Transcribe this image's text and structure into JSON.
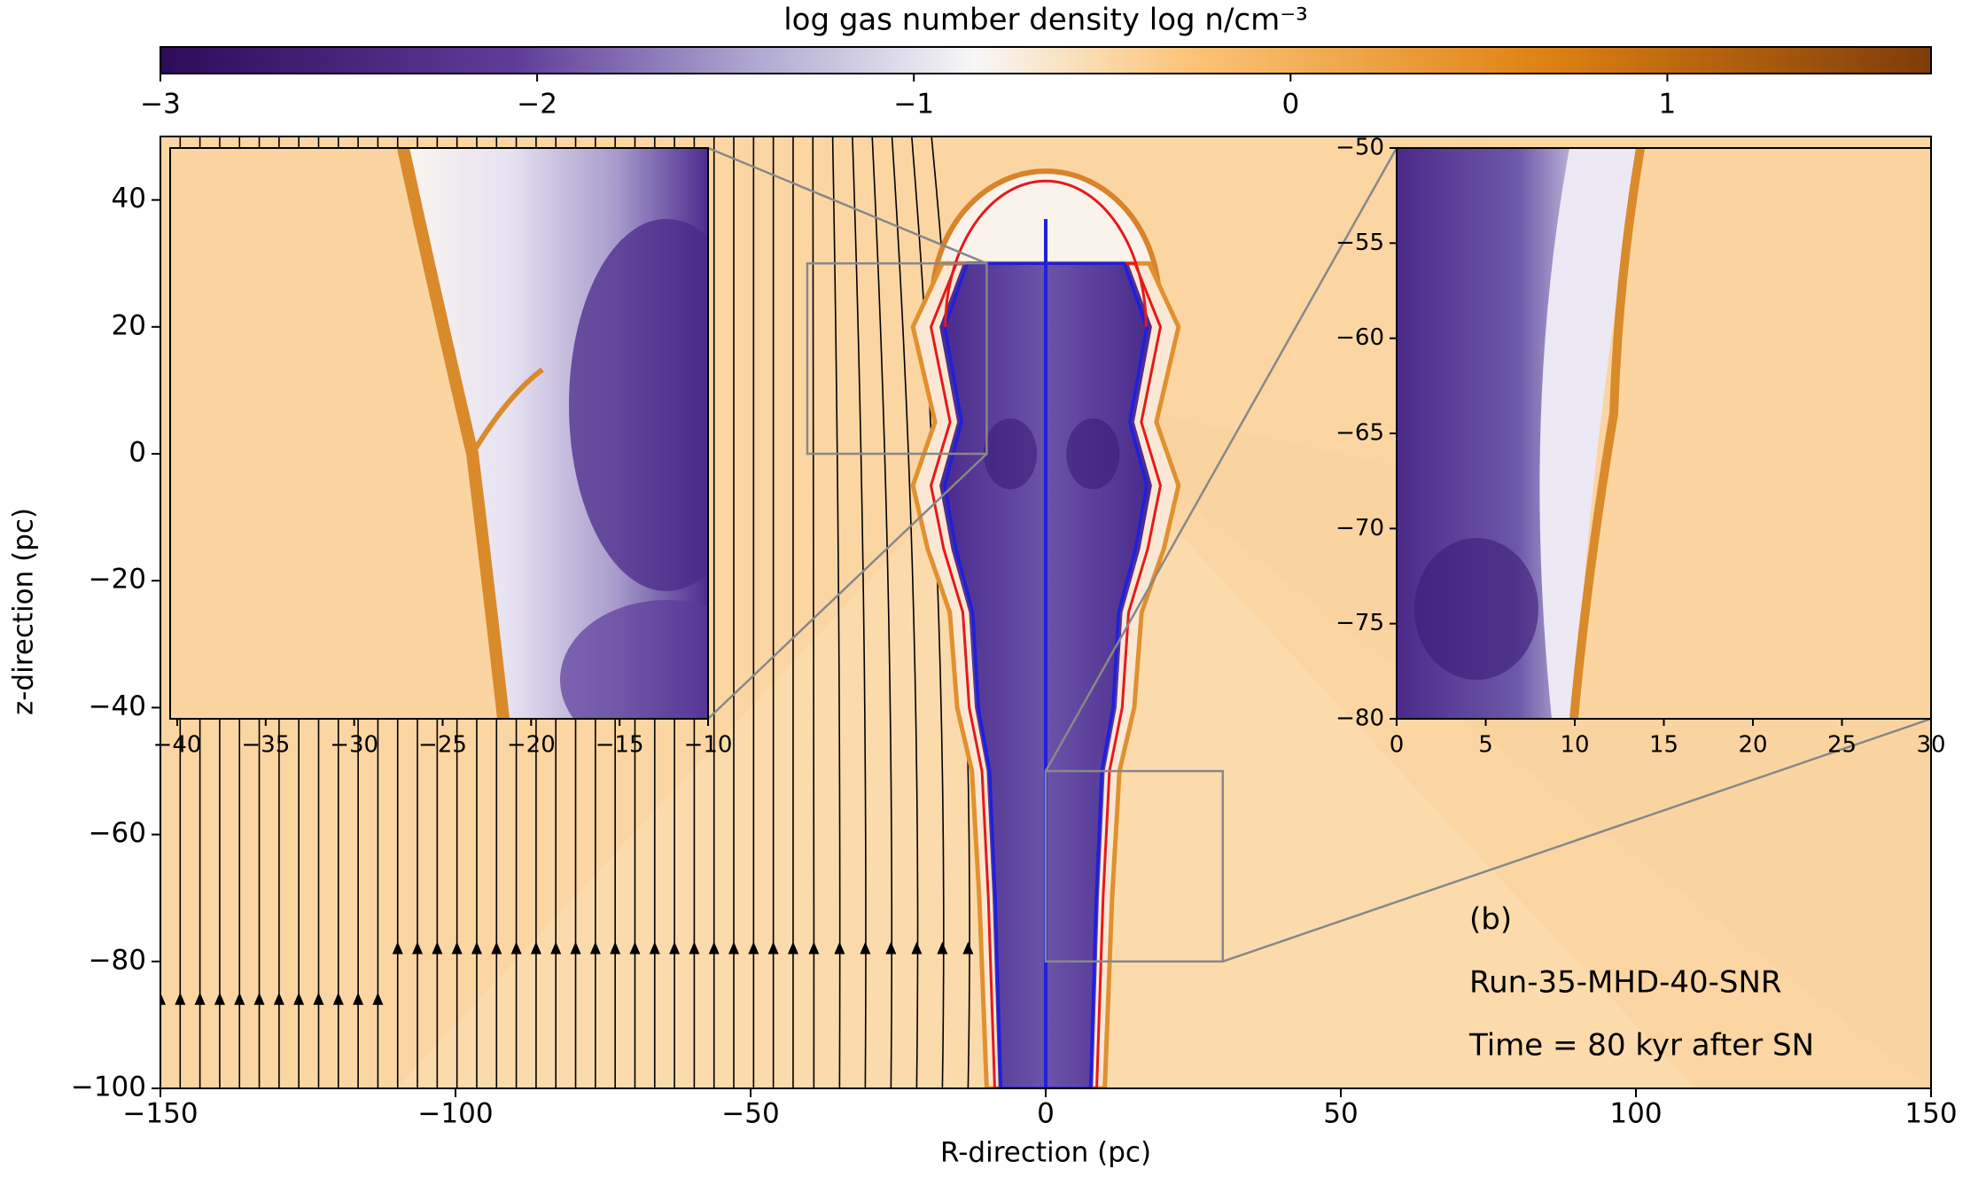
{
  "chart_data": {
    "type": "heatmap",
    "colorbar": {
      "title": "log gas number density log n/cm⁻³",
      "clim": [
        -3,
        1.7
      ],
      "ticks": [
        {
          "value": -3,
          "label": "−3"
        },
        {
          "value": -2,
          "label": "−2"
        },
        {
          "value": -1,
          "label": "−1"
        },
        0,
        1
      ]
    },
    "xlabel": "R-direction (pc)",
    "ylabel": "z-direction (pc)",
    "xlim": [
      -150,
      150
    ],
    "ylim": [
      -100,
      50
    ],
    "xticks": [
      {
        "value": -150,
        "label": "−150"
      },
      {
        "value": -100,
        "label": "−100"
      },
      {
        "value": -50,
        "label": "−50"
      },
      0,
      50,
      100,
      150
    ],
    "yticks": [
      {
        "value": -100,
        "label": "−100"
      },
      {
        "value": -80,
        "label": "−80"
      },
      {
        "value": -60,
        "label": "−60"
      },
      {
        "value": -40,
        "label": "−40"
      },
      {
        "value": -20,
        "label": "−20"
      },
      0,
      20,
      40
    ],
    "annotations": [
      "(b)",
      "Run-35-MHD-40-SNR",
      "Time = 80 kyr after SN"
    ],
    "insets": [
      {
        "xlim": [
          -40.4,
          -10
        ],
        "ylim": [
          0,
          30
        ],
        "xticks": [
          {
            "value": -40,
            "label": "−40"
          },
          {
            "value": -35,
            "label": "−35"
          },
          {
            "value": -30,
            "label": "−30"
          },
          {
            "value": -25,
            "label": "−25"
          },
          {
            "value": -20,
            "label": "−20"
          },
          {
            "value": -15,
            "label": "−15"
          },
          {
            "value": -10,
            "label": "−10"
          }
        ]
      },
      {
        "xlim": [
          0,
          30
        ],
        "ylim": [
          -80,
          -50
        ],
        "xticks": [
          0,
          5,
          10,
          15,
          20,
          25,
          30
        ],
        "yticks": [
          {
            "value": -50,
            "label": "−50"
          },
          {
            "value": -55,
            "label": "−55"
          },
          {
            "value": -60,
            "label": "−60"
          },
          {
            "value": -65,
            "label": "−65"
          },
          {
            "value": -70,
            "label": "−70"
          },
          {
            "value": -75,
            "label": "−75"
          },
          {
            "value": -80,
            "label": "−80"
          }
        ]
      }
    ]
  }
}
